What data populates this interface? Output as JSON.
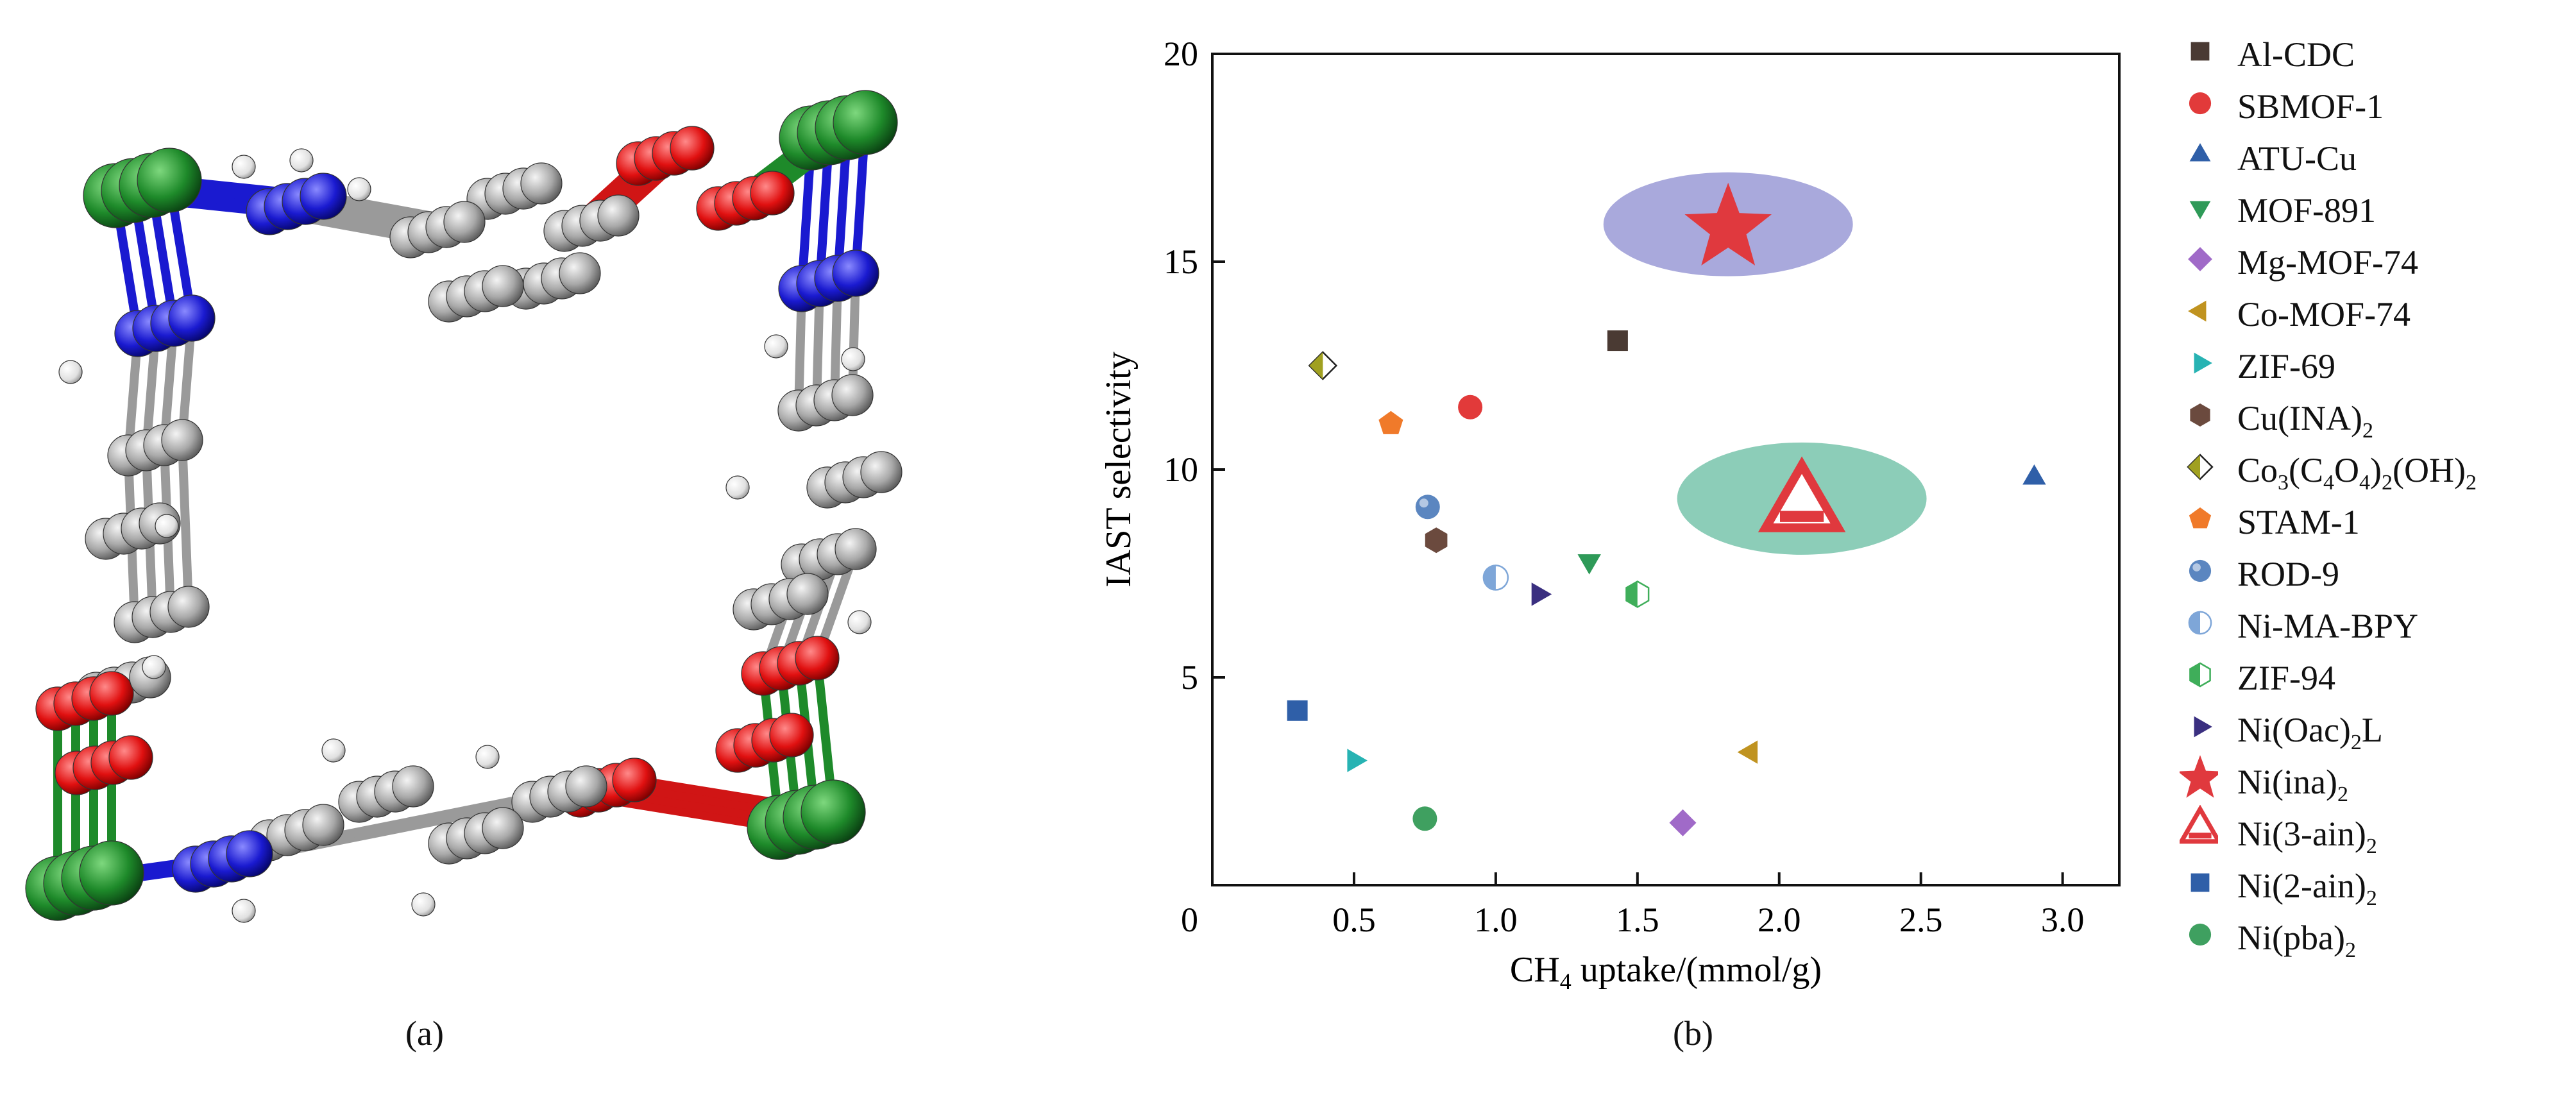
{
  "panel_a": {
    "label": "(a)"
  },
  "panel_b": {
    "label": "(b)"
  },
  "chart_data": {
    "type": "scatter",
    "xlabel_prefix": "CH",
    "xlabel_sub": "4",
    "xlabel_suffix": " uptake/(mmol/g)",
    "ylabel": "IAST selectivity",
    "xlim": [
      0,
      3.2
    ],
    "ylim": [
      0,
      20
    ],
    "xticks": [
      "0.5",
      "1.0",
      "1.5",
      "2.0",
      "2.5",
      "3.0"
    ],
    "yticks": [
      "0",
      "5",
      "10",
      "15",
      "20"
    ],
    "origin_label": "0",
    "grid": false,
    "legend_position": "right",
    "highlights": [
      {
        "series": "Ni(ina)2",
        "cx": 1.82,
        "cy": 15.9,
        "rx": 0.44,
        "ry": 1.25,
        "color": "#a9a9dc"
      },
      {
        "series": "Ni(3-ain)2",
        "cx": 2.08,
        "cy": 9.3,
        "rx": 0.44,
        "ry": 1.35,
        "color": "#8ccdb8"
      }
    ],
    "series": [
      {
        "name": "Al-CDC",
        "label_parts": [
          [
            "Al-CDC",
            ""
          ]
        ],
        "marker": "square",
        "color": "#4a3a33",
        "x": 1.43,
        "y": 13.1
      },
      {
        "name": "SBMOF-1",
        "label_parts": [
          [
            "SBMOF-1",
            ""
          ]
        ],
        "marker": "circle",
        "color": "#e23a3a",
        "x": 0.91,
        "y": 11.5
      },
      {
        "name": "ATU-Cu",
        "label_parts": [
          [
            "ATU-Cu",
            ""
          ]
        ],
        "marker": "triangle-up",
        "color": "#2f5fa8",
        "x": 2.9,
        "y": 9.8
      },
      {
        "name": "MOF-891",
        "label_parts": [
          [
            "MOF-891",
            ""
          ]
        ],
        "marker": "triangle-down",
        "color": "#2e9a58",
        "x": 1.33,
        "y": 7.8
      },
      {
        "name": "Mg-MOF-74",
        "label_parts": [
          [
            "Mg-MOF-74",
            ""
          ]
        ],
        "marker": "diamond",
        "color": "#a06ac8",
        "x": 1.66,
        "y": 1.5
      },
      {
        "name": "Co-MOF-74",
        "label_parts": [
          [
            "Co-MOF-74",
            ""
          ]
        ],
        "marker": "triangle-left",
        "color": "#c09320",
        "x": 1.9,
        "y": 3.2
      },
      {
        "name": "ZIF-69",
        "label_parts": [
          [
            "ZIF-69",
            ""
          ]
        ],
        "marker": "triangle-right",
        "color": "#27b3b3",
        "x": 0.5,
        "y": 3.0
      },
      {
        "name": "Cu(INA)2",
        "label_parts": [
          [
            "Cu(INA)",
            "2"
          ]
        ],
        "marker": "hexagon",
        "color": "#6b4a3e",
        "x": 0.79,
        "y": 8.3
      },
      {
        "name": "Co3(C4O4)2(OH)2",
        "label_parts": [
          [
            "Co",
            "3"
          ],
          [
            "(C",
            "4"
          ],
          [
            "O",
            "4"
          ],
          [
            ")",
            "2"
          ],
          [
            "(OH)",
            "2"
          ]
        ],
        "marker": "half-diamond",
        "color": "#a0a020",
        "x": 0.39,
        "y": 12.5
      },
      {
        "name": "STAM-1",
        "label_parts": [
          [
            "STAM-1",
            ""
          ]
        ],
        "marker": "pentagon",
        "color": "#f07a2a",
        "x": 0.63,
        "y": 11.1
      },
      {
        "name": "ROD-9",
        "label_parts": [
          [
            "ROD-9",
            ""
          ]
        ],
        "marker": "sphere",
        "color": "#5b86c0",
        "x": 0.76,
        "y": 9.1
      },
      {
        "name": "Ni-MA-BPY",
        "label_parts": [
          [
            "Ni-MA-BPY",
            ""
          ]
        ],
        "marker": "half-circle",
        "color": "#7ea6d8",
        "x": 1.0,
        "y": 7.4
      },
      {
        "name": "ZIF-94",
        "label_parts": [
          [
            "ZIF-94",
            ""
          ]
        ],
        "marker": "half-hexagon",
        "color": "#3fae5a",
        "x": 1.5,
        "y": 7.0
      },
      {
        "name": "Ni(Oac)2L",
        "label_parts": [
          [
            "Ni(Oac)",
            "2"
          ],
          [
            "L",
            ""
          ]
        ],
        "marker": "triangle-right",
        "color": "#3a2f80",
        "x": 1.15,
        "y": 7.0
      },
      {
        "name": "Ni(ina)2",
        "label_parts": [
          [
            "Ni(ina)",
            "2"
          ]
        ],
        "marker": "star",
        "color": "#e0393e",
        "x": 1.82,
        "y": 15.8
      },
      {
        "name": "Ni(3-ain)2",
        "label_parts": [
          [
            "Ni(3-ain)",
            "2"
          ]
        ],
        "marker": "open-triangle",
        "color": "#e0393e",
        "x": 2.08,
        "y": 9.1
      },
      {
        "name": "Ni(2-ain)2",
        "label_parts": [
          [
            "Ni(2-ain)",
            "2"
          ]
        ],
        "marker": "square",
        "color": "#2f5fa8",
        "x": 0.3,
        "y": 4.2
      },
      {
        "name": "Ni(pba)2",
        "label_parts": [
          [
            "Ni(pba)",
            "2"
          ]
        ],
        "marker": "circle",
        "color": "#3fa060",
        "x": 0.75,
        "y": 1.6
      }
    ]
  }
}
